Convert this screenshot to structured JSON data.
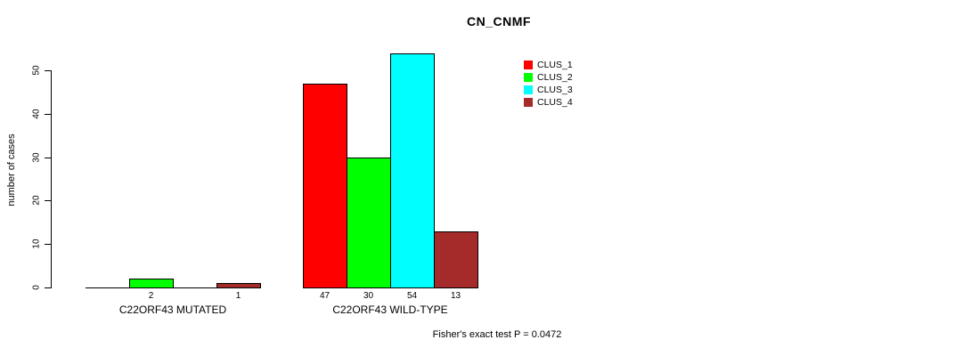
{
  "title": "CN_CNMF",
  "footnote": "Fisher's exact test P = 0.0472",
  "chart_data": {
    "type": "bar",
    "grouped": true,
    "title": "CN_CNMF",
    "xlabel": "",
    "ylabel": "number of cases",
    "groups": [
      "C22ORF43 MUTATED",
      "C22ORF43 WILD-TYPE"
    ],
    "series": [
      {
        "name": "CLUS_1",
        "color": "#FF0000",
        "values": [
          0,
          47
        ]
      },
      {
        "name": "CLUS_2",
        "color": "#00FF00",
        "values": [
          2,
          30
        ]
      },
      {
        "name": "CLUS_3",
        "color": "#00FFFF",
        "values": [
          0,
          54
        ]
      },
      {
        "name": "CLUS_4",
        "color": "#A52A2A",
        "values": [
          1,
          13
        ]
      }
    ],
    "bar_value_labels": [
      [
        null,
        "2",
        null,
        "1"
      ],
      [
        "47",
        "30",
        "54",
        "13"
      ]
    ],
    "yticks": [
      0,
      10,
      20,
      30,
      40,
      50
    ],
    "ylim": [
      0,
      50
    ],
    "grid": false,
    "legend_position": "top-right",
    "legend_entries": [
      "CLUS_1",
      "CLUS_2",
      "CLUS_3",
      "CLUS_4"
    ],
    "annotation": "Fisher's exact test P = 0.0472",
    "axis_color": "#000000",
    "background_color": "#FFFFFF"
  }
}
